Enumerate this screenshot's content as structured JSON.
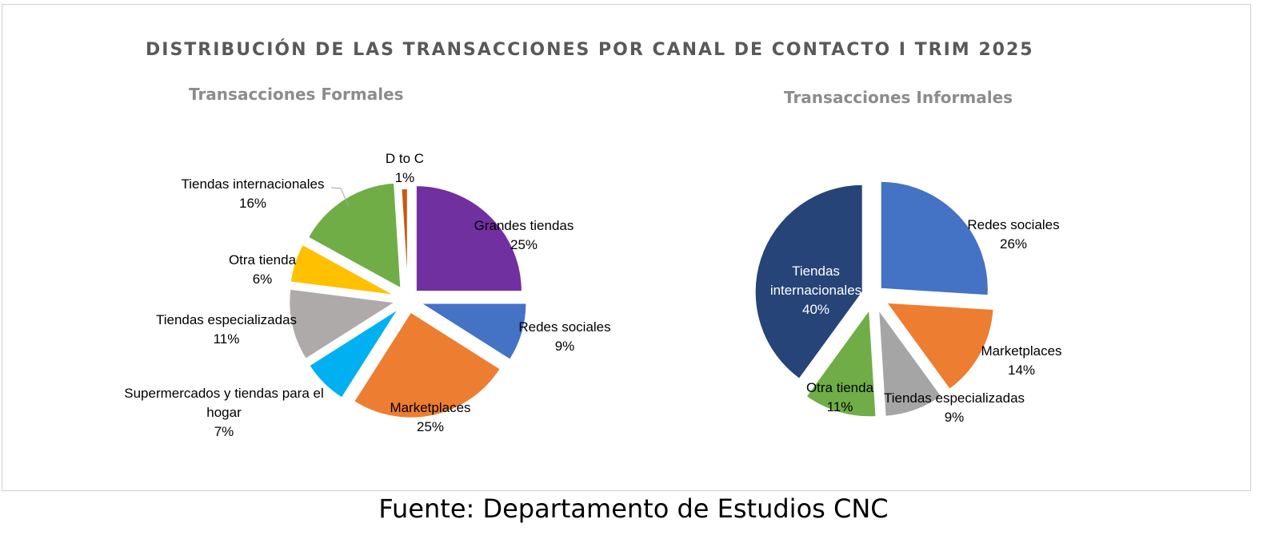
{
  "title": "DISTRIBUCIÓN DE LAS TRANSACCIONES  POR CANAL DE CONTACTO I TRIM 2025",
  "source": "Fuente: Departamento de Estudios CNC",
  "chart_data": [
    {
      "type": "pie",
      "title": "Transacciones Formales",
      "slices": [
        {
          "label": "Grandes tiendas",
          "value": 25,
          "display": "25%",
          "color": "#7030a0",
          "label_lines": [
            "Grandes tiendas",
            "25%"
          ]
        },
        {
          "label": "Redes sociales",
          "value": 9,
          "display": "9%",
          "color": "#4472c4",
          "label_lines": [
            "Redes sociales",
            "9%"
          ]
        },
        {
          "label": "Marketplaces",
          "value": 25,
          "display": "25%",
          "color": "#ed7d31",
          "label_lines": [
            "Marketplaces",
            "25%"
          ]
        },
        {
          "label": "Supermercados y tiendas para el hogar",
          "value": 7,
          "display": "7%",
          "color": "#00b0f0",
          "label_lines": [
            "Supermercados y tiendas para el",
            "hogar",
            "7%"
          ]
        },
        {
          "label": "Tiendas especializadas",
          "value": 11,
          "display": "11%",
          "color": "#aeaaaa",
          "label_lines": [
            "Tiendas especializadas",
            "11%"
          ]
        },
        {
          "label": "Otra tienda",
          "value": 6,
          "display": "6%",
          "color": "#ffc000",
          "label_lines": [
            "Otra tienda",
            "6%"
          ]
        },
        {
          "label": "Tiendas internacionales",
          "value": 16,
          "display": "16%",
          "color": "#70ad47",
          "label_lines": [
            "Tiendas internacionales",
            "16%"
          ]
        },
        {
          "label": "D to C",
          "value": 1,
          "display": "1%",
          "color": "#c55a11",
          "label_lines": [
            "D to C",
            "1%"
          ]
        }
      ]
    },
    {
      "type": "pie",
      "title": "Transacciones Informales",
      "slices": [
        {
          "label": "Redes sociales",
          "value": 26,
          "display": "26%",
          "color": "#4472c4",
          "label_lines": [
            "Redes sociales",
            "26%"
          ]
        },
        {
          "label": "Marketplaces",
          "value": 14,
          "display": "14%",
          "color": "#ed7d31",
          "label_lines": [
            "Marketplaces",
            "14%"
          ]
        },
        {
          "label": "Tiendas especializadas",
          "value": 9,
          "display": "9%",
          "color": "#a5a5a5",
          "label_lines": [
            "Tiendas especializadas",
            "9%"
          ]
        },
        {
          "label": "Otra tienda",
          "value": 11,
          "display": "11%",
          "color": "#70ad47",
          "label_lines": [
            "Otra tienda",
            "11%"
          ]
        },
        {
          "label": "Tiendas internacionales",
          "value": 40,
          "display": "40%",
          "color": "#264478",
          "label_lines": [
            "Tiendas",
            "internacionales",
            "40%"
          ]
        }
      ]
    }
  ]
}
